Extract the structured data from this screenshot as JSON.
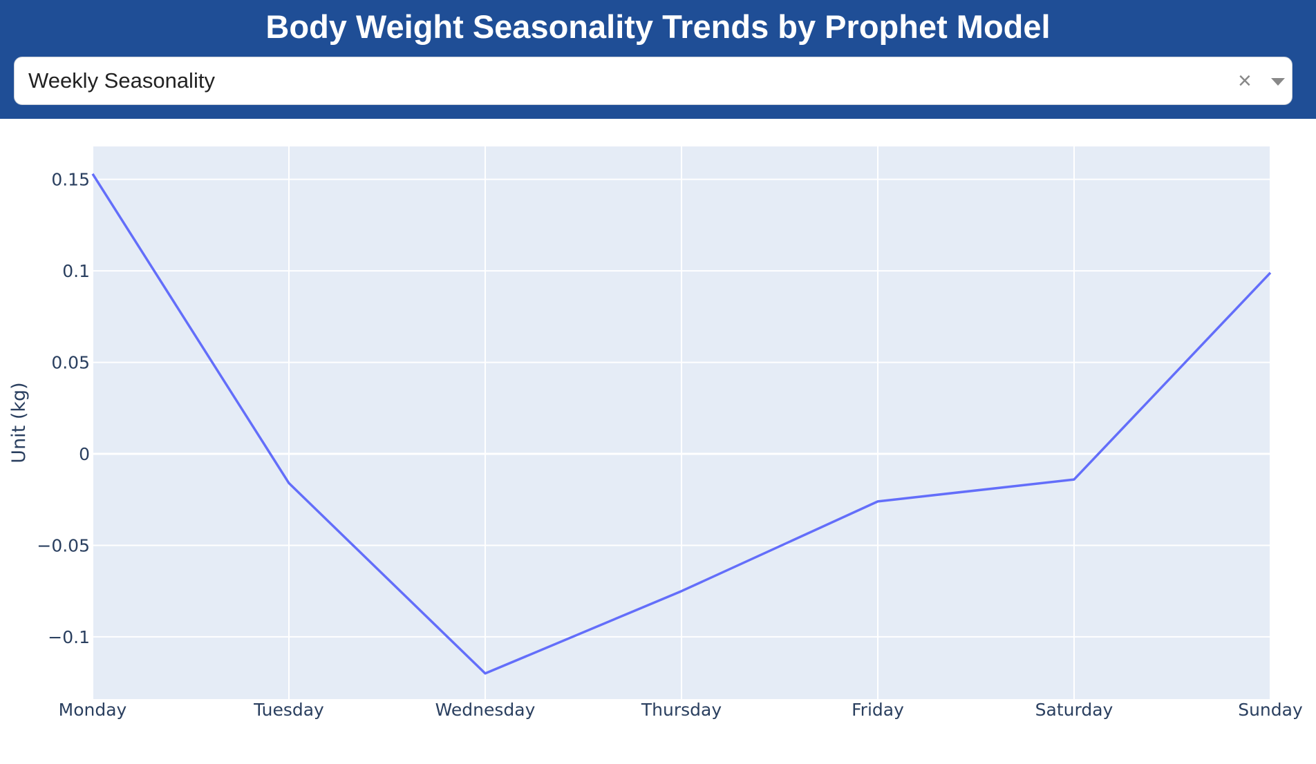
{
  "header": {
    "title": "Body Weight Seasonality Trends by Prophet Model"
  },
  "dropdown": {
    "selected": "Weekly Seasonality"
  },
  "icons": {
    "clear": "close-icon",
    "expand": "caret-down-icon"
  },
  "colors": {
    "header_bg": "#1f4e96",
    "plot_bg": "#e5ecf6",
    "line": "#636efa",
    "grid": "#ffffff",
    "axis_text": "#2a3f5f"
  },
  "chart_data": {
    "type": "line",
    "x": [
      "Monday",
      "Tuesday",
      "Wednesday",
      "Thursday",
      "Friday",
      "Saturday",
      "Sunday"
    ],
    "series": [
      {
        "values": [
          0.153,
          -0.016,
          -0.12,
          -0.075,
          -0.026,
          -0.014,
          0.099
        ]
      }
    ],
    "ylabel": "Unit (kg)",
    "yticks": [
      -0.1,
      -0.05,
      0,
      0.05,
      0.1,
      0.15
    ],
    "ytick_labels": [
      "−0.1",
      "−0.05",
      "0",
      "0.05",
      "0.1",
      "0.15"
    ],
    "ylim": [
      -0.134,
      0.168
    ],
    "grid": true,
    "legend": "none"
  }
}
